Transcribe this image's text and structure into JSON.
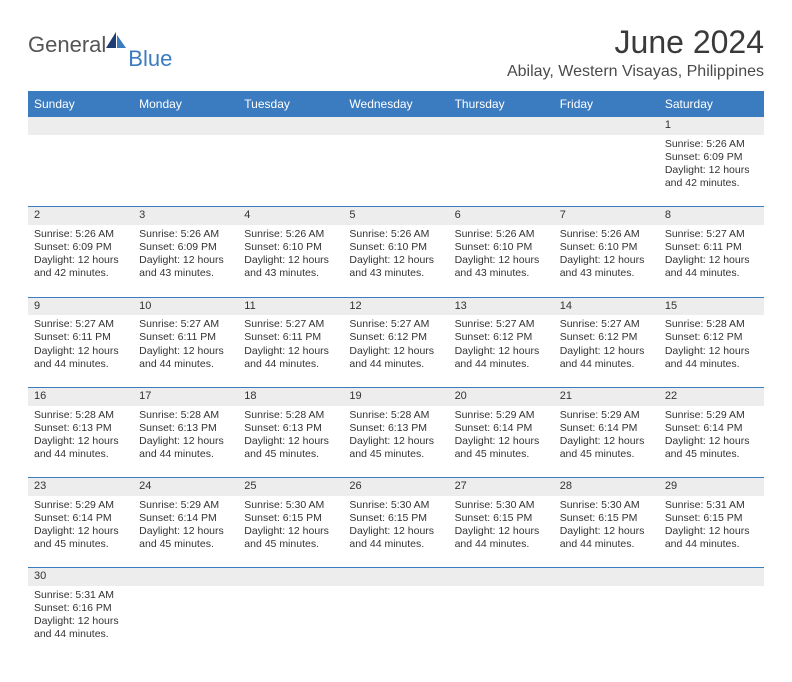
{
  "logo": {
    "general": "General",
    "blue": "Blue"
  },
  "title": "June 2024",
  "location": "Abilay, Western Visayas, Philippines",
  "colors": {
    "header_bg": "#3b7bbf",
    "header_text": "#ffffff",
    "daynum_bg": "#ededed",
    "cell_text": "#333333",
    "border": "#3b7bbf",
    "page_bg": "#ffffff",
    "logo_gray": "#555555",
    "logo_blue": "#3b7bbf"
  },
  "day_headers": [
    "Sunday",
    "Monday",
    "Tuesday",
    "Wednesday",
    "Thursday",
    "Friday",
    "Saturday"
  ],
  "weeks": [
    {
      "nums": [
        "",
        "",
        "",
        "",
        "",
        "",
        "1"
      ],
      "cells": [
        null,
        null,
        null,
        null,
        null,
        null,
        {
          "sunrise": "Sunrise: 5:26 AM",
          "sunset": "Sunset: 6:09 PM",
          "day1": "Daylight: 12 hours",
          "day2": "and 42 minutes."
        }
      ]
    },
    {
      "nums": [
        "2",
        "3",
        "4",
        "5",
        "6",
        "7",
        "8"
      ],
      "cells": [
        {
          "sunrise": "Sunrise: 5:26 AM",
          "sunset": "Sunset: 6:09 PM",
          "day1": "Daylight: 12 hours",
          "day2": "and 42 minutes."
        },
        {
          "sunrise": "Sunrise: 5:26 AM",
          "sunset": "Sunset: 6:09 PM",
          "day1": "Daylight: 12 hours",
          "day2": "and 43 minutes."
        },
        {
          "sunrise": "Sunrise: 5:26 AM",
          "sunset": "Sunset: 6:10 PM",
          "day1": "Daylight: 12 hours",
          "day2": "and 43 minutes."
        },
        {
          "sunrise": "Sunrise: 5:26 AM",
          "sunset": "Sunset: 6:10 PM",
          "day1": "Daylight: 12 hours",
          "day2": "and 43 minutes."
        },
        {
          "sunrise": "Sunrise: 5:26 AM",
          "sunset": "Sunset: 6:10 PM",
          "day1": "Daylight: 12 hours",
          "day2": "and 43 minutes."
        },
        {
          "sunrise": "Sunrise: 5:26 AM",
          "sunset": "Sunset: 6:10 PM",
          "day1": "Daylight: 12 hours",
          "day2": "and 43 minutes."
        },
        {
          "sunrise": "Sunrise: 5:27 AM",
          "sunset": "Sunset: 6:11 PM",
          "day1": "Daylight: 12 hours",
          "day2": "and 44 minutes."
        }
      ]
    },
    {
      "nums": [
        "9",
        "10",
        "11",
        "12",
        "13",
        "14",
        "15"
      ],
      "cells": [
        {
          "sunrise": "Sunrise: 5:27 AM",
          "sunset": "Sunset: 6:11 PM",
          "day1": "Daylight: 12 hours",
          "day2": "and 44 minutes."
        },
        {
          "sunrise": "Sunrise: 5:27 AM",
          "sunset": "Sunset: 6:11 PM",
          "day1": "Daylight: 12 hours",
          "day2": "and 44 minutes."
        },
        {
          "sunrise": "Sunrise: 5:27 AM",
          "sunset": "Sunset: 6:11 PM",
          "day1": "Daylight: 12 hours",
          "day2": "and 44 minutes."
        },
        {
          "sunrise": "Sunrise: 5:27 AM",
          "sunset": "Sunset: 6:12 PM",
          "day1": "Daylight: 12 hours",
          "day2": "and 44 minutes."
        },
        {
          "sunrise": "Sunrise: 5:27 AM",
          "sunset": "Sunset: 6:12 PM",
          "day1": "Daylight: 12 hours",
          "day2": "and 44 minutes."
        },
        {
          "sunrise": "Sunrise: 5:27 AM",
          "sunset": "Sunset: 6:12 PM",
          "day1": "Daylight: 12 hours",
          "day2": "and 44 minutes."
        },
        {
          "sunrise": "Sunrise: 5:28 AM",
          "sunset": "Sunset: 6:12 PM",
          "day1": "Daylight: 12 hours",
          "day2": "and 44 minutes."
        }
      ]
    },
    {
      "nums": [
        "16",
        "17",
        "18",
        "19",
        "20",
        "21",
        "22"
      ],
      "cells": [
        {
          "sunrise": "Sunrise: 5:28 AM",
          "sunset": "Sunset: 6:13 PM",
          "day1": "Daylight: 12 hours",
          "day2": "and 44 minutes."
        },
        {
          "sunrise": "Sunrise: 5:28 AM",
          "sunset": "Sunset: 6:13 PM",
          "day1": "Daylight: 12 hours",
          "day2": "and 44 minutes."
        },
        {
          "sunrise": "Sunrise: 5:28 AM",
          "sunset": "Sunset: 6:13 PM",
          "day1": "Daylight: 12 hours",
          "day2": "and 45 minutes."
        },
        {
          "sunrise": "Sunrise: 5:28 AM",
          "sunset": "Sunset: 6:13 PM",
          "day1": "Daylight: 12 hours",
          "day2": "and 45 minutes."
        },
        {
          "sunrise": "Sunrise: 5:29 AM",
          "sunset": "Sunset: 6:14 PM",
          "day1": "Daylight: 12 hours",
          "day2": "and 45 minutes."
        },
        {
          "sunrise": "Sunrise: 5:29 AM",
          "sunset": "Sunset: 6:14 PM",
          "day1": "Daylight: 12 hours",
          "day2": "and 45 minutes."
        },
        {
          "sunrise": "Sunrise: 5:29 AM",
          "sunset": "Sunset: 6:14 PM",
          "day1": "Daylight: 12 hours",
          "day2": "and 45 minutes."
        }
      ]
    },
    {
      "nums": [
        "23",
        "24",
        "25",
        "26",
        "27",
        "28",
        "29"
      ],
      "cells": [
        {
          "sunrise": "Sunrise: 5:29 AM",
          "sunset": "Sunset: 6:14 PM",
          "day1": "Daylight: 12 hours",
          "day2": "and 45 minutes."
        },
        {
          "sunrise": "Sunrise: 5:29 AM",
          "sunset": "Sunset: 6:14 PM",
          "day1": "Daylight: 12 hours",
          "day2": "and 45 minutes."
        },
        {
          "sunrise": "Sunrise: 5:30 AM",
          "sunset": "Sunset: 6:15 PM",
          "day1": "Daylight: 12 hours",
          "day2": "and 45 minutes."
        },
        {
          "sunrise": "Sunrise: 5:30 AM",
          "sunset": "Sunset: 6:15 PM",
          "day1": "Daylight: 12 hours",
          "day2": "and 44 minutes."
        },
        {
          "sunrise": "Sunrise: 5:30 AM",
          "sunset": "Sunset: 6:15 PM",
          "day1": "Daylight: 12 hours",
          "day2": "and 44 minutes."
        },
        {
          "sunrise": "Sunrise: 5:30 AM",
          "sunset": "Sunset: 6:15 PM",
          "day1": "Daylight: 12 hours",
          "day2": "and 44 minutes."
        },
        {
          "sunrise": "Sunrise: 5:31 AM",
          "sunset": "Sunset: 6:15 PM",
          "day1": "Daylight: 12 hours",
          "day2": "and 44 minutes."
        }
      ]
    },
    {
      "nums": [
        "30",
        "",
        "",
        "",
        "",
        "",
        ""
      ],
      "cells": [
        {
          "sunrise": "Sunrise: 5:31 AM",
          "sunset": "Sunset: 6:16 PM",
          "day1": "Daylight: 12 hours",
          "day2": "and 44 minutes."
        },
        null,
        null,
        null,
        null,
        null,
        null
      ]
    }
  ]
}
